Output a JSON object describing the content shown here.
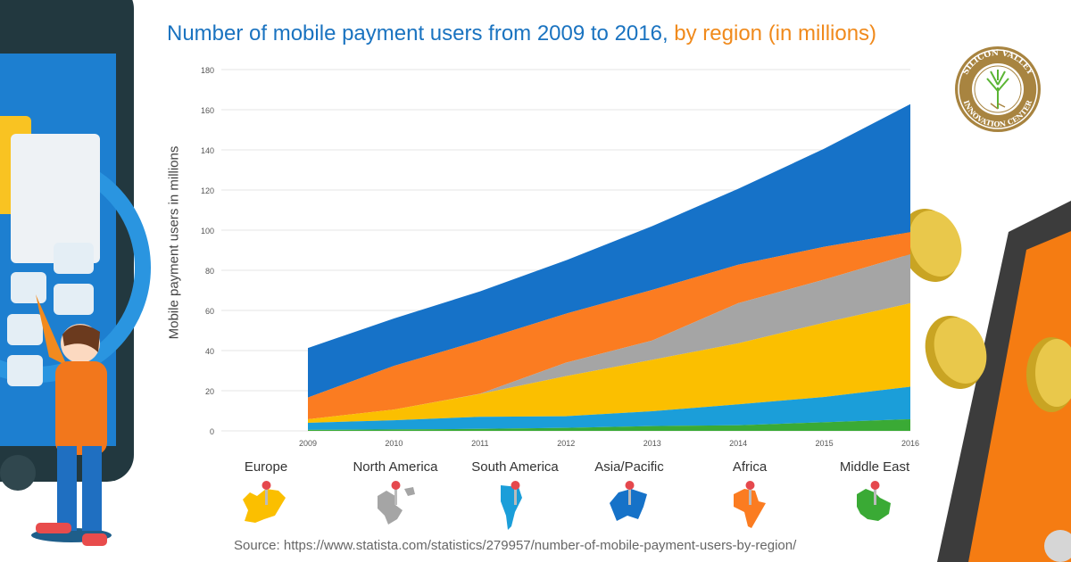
{
  "title": {
    "part1": "Number of mobile payment users from 2009 to 2016,",
    "part2": " by region (in millions)",
    "color1": "#1a73c0",
    "color2": "#f08a1c"
  },
  "logo": {
    "text": "SILICON VALLEY INNOVATION CENTER"
  },
  "source": "Source: https://www.statista.com/statistics/279957/number-of-mobile-payment-users-by-region/",
  "chart_data": {
    "type": "area",
    "stacked": true,
    "title": "Number of mobile payment users from 2009 to 2016, by region (in millions)",
    "xlabel": "",
    "ylabel": "Mobile payment users in millions",
    "ylim": [
      0,
      180
    ],
    "yticks": [
      0,
      20,
      40,
      60,
      80,
      100,
      120,
      140,
      160,
      180
    ],
    "grid": true,
    "legend_position": "bottom",
    "x": [
      "2009",
      "2010",
      "2011",
      "2012",
      "2013",
      "2014",
      "2015",
      "2016"
    ],
    "series": [
      {
        "name": "Middle East",
        "color": "#3aaa35",
        "values": [
          0.5,
          0.7,
          1.0,
          1.5,
          2.4,
          2.8,
          4.3,
          5.8
        ]
      },
      {
        "name": "South America",
        "color": "#1b9ed9",
        "values": [
          3.5,
          4.6,
          6.0,
          5.8,
          7.4,
          10.4,
          12.6,
          16.2
        ]
      },
      {
        "name": "Europe",
        "color": "#fbbf00",
        "values": [
          1.8,
          5.3,
          11.4,
          20.0,
          25.6,
          30.4,
          37.0,
          41.6
        ]
      },
      {
        "name": "North America",
        "color": "#a5a5a5",
        "values": [
          0,
          0,
          0.1,
          6.7,
          9.6,
          20.0,
          21.5,
          24.4
        ]
      },
      {
        "name": "Africa",
        "color": "#fb7c21",
        "values": [
          10.8,
          21.8,
          26.5,
          24.4,
          25.2,
          19.2,
          16.3,
          11.0
        ]
      },
      {
        "name": "Asia/Pacific",
        "color": "#1672c8",
        "values": [
          24.7,
          23.6,
          24.5,
          26.6,
          31.8,
          37.8,
          48.9,
          63.8
        ]
      }
    ],
    "legend_order": [
      "Europe",
      "North America",
      "South America",
      "Asia/Pacific",
      "Africa",
      "Middle East"
    ]
  }
}
